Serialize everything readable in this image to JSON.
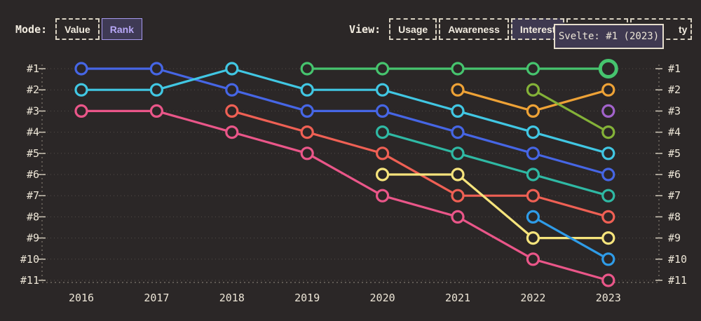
{
  "controls": {
    "mode": {
      "label": "Mode:",
      "buttons": [
        {
          "label": "Value",
          "selected": false
        },
        {
          "label": "Rank",
          "selected": true
        }
      ]
    },
    "view": {
      "label": "View:",
      "buttons": [
        {
          "label": "Usage",
          "selected": false
        },
        {
          "label": "Awareness",
          "selected": false
        },
        {
          "label": "Interest",
          "selected": true
        },
        {
          "label": "",
          "selected": false,
          "note": "covered by tooltip"
        },
        {
          "label_visible": "ty",
          "selected": false,
          "note": "label partially covered by tooltip"
        }
      ]
    }
  },
  "tooltip": {
    "text": "Svelte: #1 (2023)"
  },
  "colors": {
    "background": "#2b2727",
    "text": "#ece5d6",
    "accent_selected": "#b7a7f6",
    "grid": "#544e4a",
    "axis": "#958d82",
    "tick": "#d4cdbd"
  },
  "chart_data": {
    "type": "line",
    "subtype": "bump-rank-chart",
    "x": [
      2016,
      2017,
      2018,
      2019,
      2020,
      2021,
      2022,
      2023
    ],
    "rank_labels": [
      "#1",
      "#2",
      "#3",
      "#4",
      "#5",
      "#6",
      "#7",
      "#8",
      "#9",
      "#10",
      "#11"
    ],
    "ylim": [
      1,
      11
    ],
    "grid": true,
    "legend": "none",
    "highlight": {
      "series": "svelte-green",
      "year": 2023,
      "rank": 1,
      "tooltip": "Svelte: #1 (2023)"
    },
    "series": [
      {
        "id": "blue",
        "color": "#4666e5",
        "ranks": [
          1,
          1,
          2,
          3,
          3,
          4,
          5,
          6
        ]
      },
      {
        "id": "cyan",
        "color": "#41c7e3",
        "ranks": [
          2,
          2,
          1,
          2,
          2,
          3,
          4,
          5
        ]
      },
      {
        "id": "pink",
        "color": "#ea5689",
        "ranks": [
          3,
          3,
          4,
          5,
          7,
          8,
          10,
          11
        ]
      },
      {
        "id": "salmon",
        "color": "#ef6054",
        "ranks": [
          null,
          null,
          3,
          4,
          5,
          7,
          7,
          8
        ]
      },
      {
        "id": "svelte-green",
        "name": "Svelte",
        "color": "#46c46e",
        "ranks": [
          null,
          null,
          null,
          1,
          1,
          1,
          1,
          1
        ],
        "highlight_last": true
      },
      {
        "id": "teal",
        "color": "#2fb9a4",
        "ranks": [
          null,
          null,
          null,
          null,
          4,
          5,
          6,
          7
        ]
      },
      {
        "id": "yellow",
        "color": "#f6e47c",
        "ranks": [
          null,
          null,
          null,
          null,
          6,
          6,
          9,
          9
        ]
      },
      {
        "id": "amber",
        "color": "#eea236",
        "ranks": [
          null,
          null,
          null,
          null,
          null,
          2,
          3,
          2
        ]
      },
      {
        "id": "lime",
        "color": "#84b238",
        "ranks": [
          null,
          null,
          null,
          null,
          null,
          null,
          2,
          4
        ]
      },
      {
        "id": "dodger",
        "color": "#2f9ce8",
        "ranks": [
          null,
          null,
          null,
          null,
          null,
          null,
          8,
          10
        ]
      },
      {
        "id": "purple",
        "color": "#a263cb",
        "ranks": [
          null,
          null,
          null,
          null,
          null,
          null,
          null,
          3
        ]
      }
    ]
  }
}
